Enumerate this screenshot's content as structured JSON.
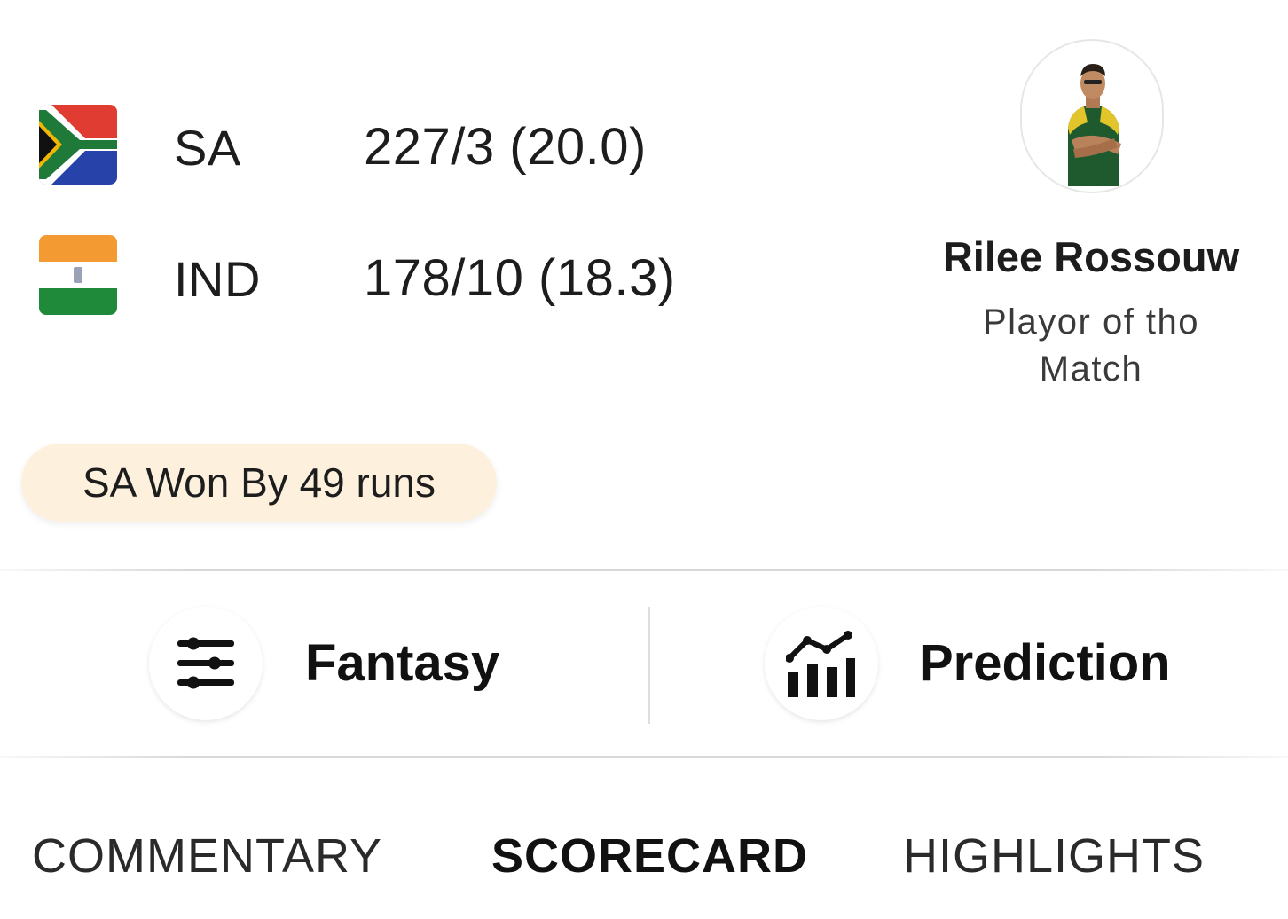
{
  "match": {
    "teams": [
      {
        "code": "SA",
        "score": "227/3 (20.0)",
        "flag_icon": "south-africa-flag-icon"
      },
      {
        "code": "IND",
        "score": "178/10 (18.3)",
        "flag_icon": "india-flag-icon"
      }
    ],
    "result": "SA Won By 49 runs"
  },
  "player_of_match": {
    "name": "Rilee Rossouw",
    "label": "Playor of tho Match",
    "avatar_icon": "player-avatar"
  },
  "actions": {
    "fantasy": {
      "label": "Fantasy",
      "icon": "sliders-icon"
    },
    "prediction": {
      "label": "Prediction",
      "icon": "bar-chart-trend-icon"
    }
  },
  "tabs": [
    {
      "label": "COMMENTARY",
      "active": false
    },
    {
      "label": "SCORECARD",
      "active": true
    },
    {
      "label": "HIGHLIGHTS",
      "active": false
    }
  ],
  "colors": {
    "result_badge_bg": "#fdf1de",
    "text_primary": "#1d1d1d",
    "divider": "#d8d8d8"
  }
}
